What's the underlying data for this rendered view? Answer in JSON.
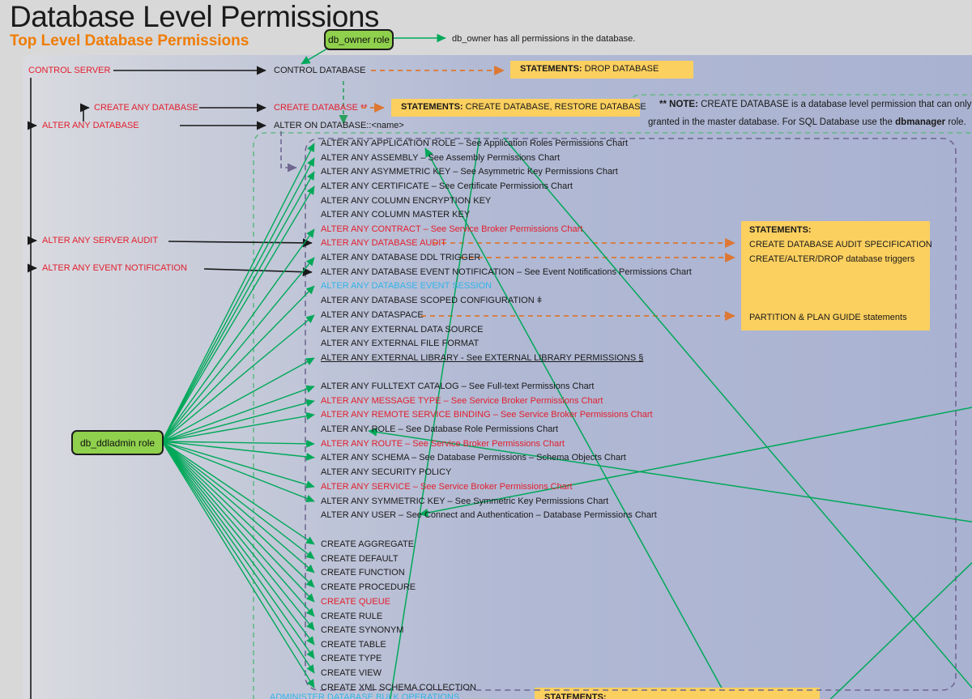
{
  "title": "Database Level Permissions",
  "subtitle": "Top Level Database Permissions",
  "roles": {
    "db_owner": "db_owner role",
    "db_owner_caption": "db_owner has all permissions in the database.",
    "db_ddladmin": "db_ddladmin role"
  },
  "server_level": {
    "control_server": "CONTROL SERVER",
    "create_any_database": "CREATE ANY DATABASE",
    "alter_any_database": "ALTER ANY DATABASE",
    "alter_any_server_audit": "ALTER ANY SERVER AUDIT",
    "alter_any_event_notification": "ALTER ANY EVENT NOTIFICATION"
  },
  "database_level": {
    "control_database": "CONTROL DATABASE",
    "create_database": "CREATE DATABASE **",
    "alter_on_database": "ALTER ON DATABASE::<name>"
  },
  "note": {
    "prefix": "** NOTE:",
    "line1": " CREATE DATABASE is a database level permission that can only be",
    "line2_pre": "granted in the master database. For SQL Database use the ",
    "line2_bold": "dbmanager",
    "line2_post": " role."
  },
  "statement_boxes": {
    "drop": {
      "label": "STATEMENTS:",
      "text": " DROP DATABASE"
    },
    "create": {
      "label": "STATEMENTS:",
      "text": " CREATE DATABASE, RESTORE DATABASE"
    },
    "audit": {
      "label": "STATEMENTS:",
      "line1": "CREATE DATABASE AUDIT SPECIFICATION",
      "line2": "CREATE/ALTER/DROP database triggers",
      "line3": "PARTITION & PLAN GUIDE statements"
    },
    "bottom": {
      "label": "STATEMENTS:"
    }
  },
  "permission_list": [
    {
      "text": "ALTER ANY APPLICATION ROLE – See Application Roles Permissions Chart",
      "color": "black"
    },
    {
      "text": "ALTER ANY ASSEMBLY – See Assembly Permissions Chart",
      "color": "black"
    },
    {
      "text": "ALTER ANY ASYMMETRIC KEY – See Asymmetric Key Permissions Chart",
      "color": "black"
    },
    {
      "text": "ALTER ANY CERTIFICATE – See Certificate Permissions Chart",
      "color": "black"
    },
    {
      "text": "ALTER ANY COLUMN ENCRYPTION KEY",
      "color": "black"
    },
    {
      "text": "ALTER ANY COLUMN MASTER KEY",
      "color": "black"
    },
    {
      "text": "ALTER ANY CONTRACT – See Service Broker Permissions Chart",
      "color": "red"
    },
    {
      "text": "ALTER ANY DATABASE AUDIT",
      "color": "red"
    },
    {
      "text": "ALTER ANY DATABASE DDL TRIGGER",
      "color": "black"
    },
    {
      "text": "ALTER ANY DATABASE EVENT NOTIFICATION – See Event Notifications Permissions Chart",
      "color": "black"
    },
    {
      "text": "ALTER ANY DATABASE EVENT SESSION",
      "color": "cyan"
    },
    {
      "text": "ALTER ANY DATABASE SCOPED CONFIGURATION ǂ",
      "color": "black"
    },
    {
      "text": "ALTER ANY DATASPACE",
      "color": "black"
    },
    {
      "text": "ALTER ANY EXTERNAL DATA SOURCE",
      "color": "black"
    },
    {
      "text": "ALTER ANY EXTERNAL FILE FORMAT",
      "color": "black"
    },
    {
      "text": "ALTER ANY EXTERNAL LIBRARY - See EXTERNAL LIBRARY PERMISSIONS §",
      "color": "black",
      "underline": true
    },
    {
      "text": "ALTER ANY FULLTEXT CATALOG – See Full-text Permissions Chart",
      "color": "black"
    },
    {
      "text": "ALTER ANY MESSAGE TYPE – See Service Broker Permissions Chart",
      "color": "red"
    },
    {
      "text": "ALTER ANY REMOTE SERVICE BINDING – See Service Broker Permissions Chart",
      "color": "red"
    },
    {
      "text": "ALTER ANY ROLE – See Database Role Permissions Chart",
      "color": "black"
    },
    {
      "text": "ALTER ANY ROUTE – See Service Broker Permissions Chart",
      "color": "red"
    },
    {
      "text": "ALTER ANY SCHEMA – See Database Permissions – Schema Objects Chart",
      "color": "black"
    },
    {
      "text": "ALTER ANY SECURITY POLICY",
      "color": "black"
    },
    {
      "text": "ALTER ANY SERVICE – See Service Broker Permissions Chart",
      "color": "red"
    },
    {
      "text": "ALTER ANY SYMMETRIC KEY – See Symmetric Key Permissions Chart",
      "color": "black"
    },
    {
      "text": "ALTER ANY USER – See Connect and Authentication – Database Permissions Chart",
      "color": "black"
    },
    {
      "text": "CREATE AGGREGATE",
      "color": "black"
    },
    {
      "text": "CREATE DEFAULT",
      "color": "black"
    },
    {
      "text": "CREATE FUNCTION",
      "color": "black"
    },
    {
      "text": "CREATE PROCEDURE",
      "color": "black"
    },
    {
      "text": "CREATE QUEUE",
      "color": "red"
    },
    {
      "text": "CREATE RULE",
      "color": "black"
    },
    {
      "text": "CREATE SYNONYM",
      "color": "black"
    },
    {
      "text": "CREATE TABLE",
      "color": "black"
    },
    {
      "text": "CREATE TYPE",
      "color": "black"
    },
    {
      "text": "CREATE VIEW",
      "color": "black"
    },
    {
      "text": "CREATE XML SCHEMA COLLECTION",
      "color": "black"
    },
    {
      "text": "ADMINISTER DATABASE BULK OPERATIONS",
      "color": "cyan"
    }
  ],
  "colors": {
    "red": "#e31e2d",
    "cyan": "#31b4e9",
    "subtitle_orange": "#f07c05",
    "green_line": "#00a859",
    "green_dashed": "#63b888",
    "purple_dashed": "#6f6791",
    "orange_dashed": "#dd7732",
    "yellow_box": "#fcd05f",
    "role_box_green": "#8fd04c"
  }
}
